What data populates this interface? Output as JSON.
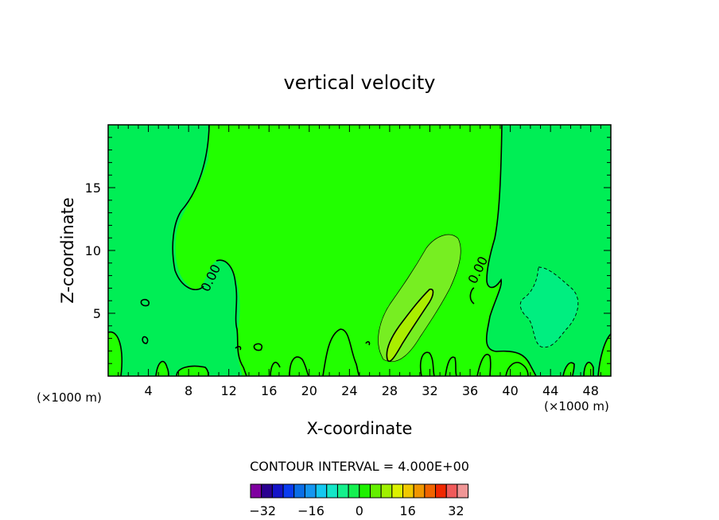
{
  "chart_data": {
    "type": "contour",
    "title": "vertical velocity",
    "xlabel": "X-coordinate",
    "ylabel": "Z-coordinate",
    "x_unit": "(×1000 m)",
    "xlim": [
      0,
      50
    ],
    "ylim": [
      0,
      20
    ],
    "x_ticks": [
      4,
      8,
      12,
      16,
      20,
      24,
      28,
      32,
      36,
      40,
      44,
      48
    ],
    "y_ticks": [
      5,
      10,
      15
    ],
    "contour_interval_text": "CONTOUR INTERVAL = 4.000E+00",
    "contour_labels": [
      "0.00",
      "0.00"
    ],
    "colorbar": {
      "levels_min": -36,
      "levels_max": 36,
      "interval": 4,
      "tick_values": [
        -32,
        -16,
        0,
        16,
        32
      ],
      "colors": [
        "#7f00a0",
        "#2a0090",
        "#1414c8",
        "#0a3cf0",
        "#0a6ee6",
        "#1496f0",
        "#14c8f0",
        "#14e6c8",
        "#14f08c",
        "#14f050",
        "#1ef000",
        "#64f000",
        "#a0f000",
        "#dcf000",
        "#f0c800",
        "#f09600",
        "#f06400",
        "#f02800",
        "#f05a5a",
        "#f09696"
      ]
    },
    "regions": [
      {
        "name": "background",
        "range": "-4 to 0",
        "color": "#00ee55"
      },
      {
        "name": "upper-mid band",
        "range": "0 to 4",
        "color": "#22ff00"
      },
      {
        "name": "updraft",
        "x": [
          27,
          35
        ],
        "z": [
          1,
          11.3
        ],
        "range": "4 to 8",
        "color": "#77ee22"
      },
      {
        "name": "updraft core",
        "x": [
          27.7,
          32.7
        ],
        "z": [
          1,
          7
        ],
        "range": "8 to 12",
        "color": "#aaee00"
      },
      {
        "name": "downdraft",
        "x": [
          41,
          46.5
        ],
        "z": [
          2.2,
          8.8
        ],
        "range": "-8 to -4",
        "color": "#00ee80"
      }
    ]
  }
}
